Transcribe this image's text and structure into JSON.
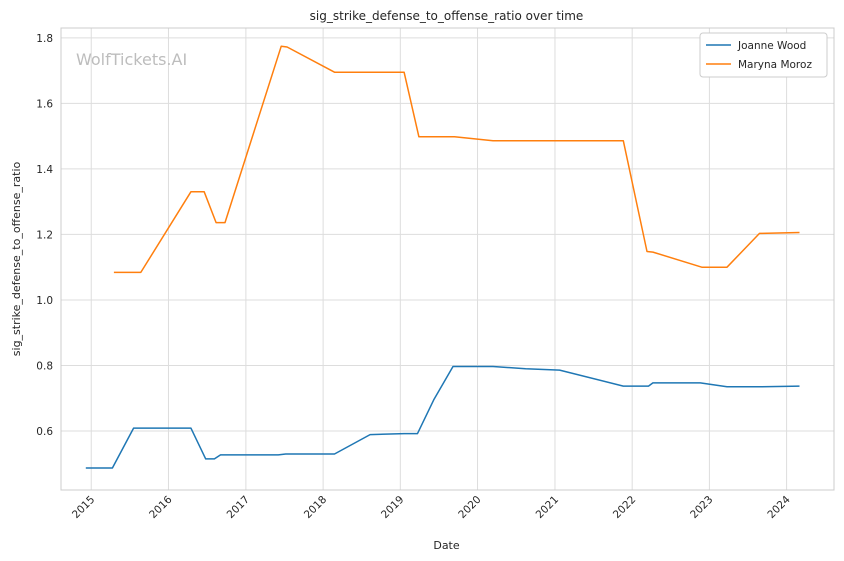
{
  "chart_data": {
    "type": "line",
    "title": "sig_strike_defense_to_offense_ratio over time",
    "xlabel": "Date",
    "ylabel": "sig_strike_defense_to_offense_ratio",
    "watermark": "WolfTickets.AI",
    "xlim": [
      "2014-08-11",
      "2024-08-12"
    ],
    "ylim": [
      0.42,
      1.83
    ],
    "x_ticks": [
      "2015",
      "2016",
      "2017",
      "2018",
      "2019",
      "2020",
      "2021",
      "2022",
      "2023",
      "2024"
    ],
    "y_ticks": [
      "0.6",
      "0.8",
      "1.0",
      "1.2",
      "1.4",
      "1.6",
      "1.8"
    ],
    "grid": true,
    "legend": "top-right",
    "series": [
      {
        "name": "Joanne Wood",
        "color": "#1f77b4",
        "points": [
          [
            "2014-12-06",
            0.487
          ],
          [
            "2015-04-11",
            0.487
          ],
          [
            "2015-07-20",
            0.609
          ],
          [
            "2016-04-16",
            0.609
          ],
          [
            "2016-06-25",
            0.515
          ],
          [
            "2016-08-05",
            0.515
          ],
          [
            "2016-09-03",
            0.527
          ],
          [
            "2017-06-03",
            0.527
          ],
          [
            "2017-07-08",
            0.53
          ],
          [
            "2018-02-24",
            0.53
          ],
          [
            "2018-08-11",
            0.589
          ],
          [
            "2019-01-19",
            0.592
          ],
          [
            "2019-03-23",
            0.592
          ],
          [
            "2019-06-08",
            0.695
          ],
          [
            "2019-09-07",
            0.797
          ],
          [
            "2020-03-14",
            0.797
          ],
          [
            "2020-08-15",
            0.79
          ],
          [
            "2021-01-23",
            0.786
          ],
          [
            "2021-11-20",
            0.737
          ],
          [
            "2022-03-19",
            0.737
          ],
          [
            "2022-04-09",
            0.747
          ],
          [
            "2022-11-19",
            0.747
          ],
          [
            "2023-03-25",
            0.735
          ],
          [
            "2023-08-26",
            0.735
          ],
          [
            "2024-03-02",
            0.737
          ]
        ]
      },
      {
        "name": "Maryna Moroz",
        "color": "#ff7f0e",
        "points": [
          [
            "2015-04-18",
            1.084
          ],
          [
            "2015-08-23",
            1.084
          ],
          [
            "2016-04-16",
            1.33
          ],
          [
            "2016-06-18",
            1.33
          ],
          [
            "2016-08-13",
            1.236
          ],
          [
            "2016-09-24",
            1.236
          ],
          [
            "2017-06-17",
            1.774
          ],
          [
            "2017-07-15",
            1.772
          ],
          [
            "2018-02-24",
            1.695
          ],
          [
            "2019-01-19",
            1.695
          ],
          [
            "2019-03-30",
            1.498
          ],
          [
            "2019-09-14",
            1.498
          ],
          [
            "2020-03-14",
            1.486
          ],
          [
            "2021-11-20",
            1.486
          ],
          [
            "2022-03-12",
            1.148
          ],
          [
            "2022-04-09",
            1.146
          ],
          [
            "2022-11-26",
            1.1
          ],
          [
            "2023-03-25",
            1.1
          ],
          [
            "2023-08-26",
            1.203
          ],
          [
            "2024-03-02",
            1.206
          ]
        ]
      }
    ]
  }
}
